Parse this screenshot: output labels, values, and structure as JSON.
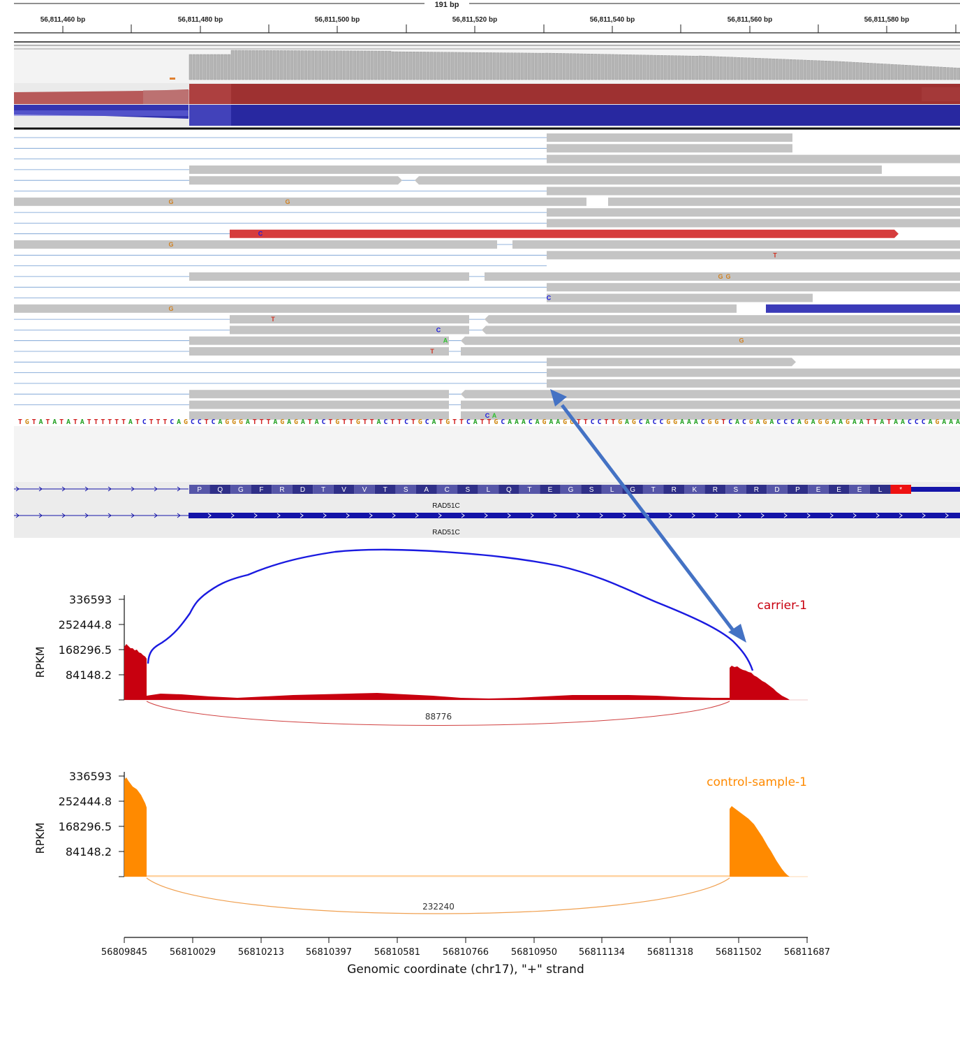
{
  "igv": {
    "span_label": "191 bp",
    "ruler_labels": [
      "56,811,460 bp",
      "56,811,480 bp",
      "56,811,500 bp",
      "56,811,520 bp",
      "56,811,540 bp",
      "56,811,560 bp",
      "56,811,580 bp"
    ],
    "sequence": "TGTATATATATTTTTTATCTTTCAGCCTCAGGGATTTAGAGATACTGTTGTTACTTCTGCATGTTCATTGCAAACAGAAGGTTCCTTGAGCACCGGAAACGGTCACGAGACCCAGAGGAAGAATTATAACCCAGAAA",
    "amino_acids": [
      "P",
      "Q",
      "G",
      "F",
      "R",
      "D",
      "T",
      "V",
      "V",
      "T",
      "S",
      "A",
      "C",
      "S",
      "L",
      "Q",
      "T",
      "E",
      "G",
      "S",
      "L",
      "G",
      "T",
      "R",
      "K",
      "R",
      "S",
      "R",
      "D",
      "P",
      "E",
      "E",
      "E",
      "L",
      "*"
    ],
    "gene_name_1": "RAD51C",
    "gene_name_2": "RAD51C",
    "mismatches": [
      "G",
      "G",
      "G",
      "G",
      "T",
      "C",
      "A",
      "T",
      "G",
      "T",
      "C",
      "C",
      "G",
      "G",
      "C",
      "A"
    ]
  },
  "colors": {
    "carrier": "#c8000f",
    "control": "#ff8a00",
    "arc_blue": "#1a1ae0",
    "arrow": "#4472c4",
    "gene": "#1414a8"
  },
  "sashimi": {
    "x_ticks": [
      "56809845",
      "56810029",
      "56810213",
      "56810397",
      "56810581",
      "56810766",
      "56810950",
      "56811134",
      "56811318",
      "56811502",
      "56811687"
    ],
    "x_label": "Genomic coordinate (chr17), \"+\" strand",
    "y_ticks": [
      "336593",
      "252444.8",
      "168296.5",
      "84148.2"
    ],
    "y_label": "RPKM",
    "panels": [
      {
        "name": "carrier-1",
        "junction_count": "88776"
      },
      {
        "name": "control-sample-1",
        "junction_count": "232240"
      }
    ]
  }
}
